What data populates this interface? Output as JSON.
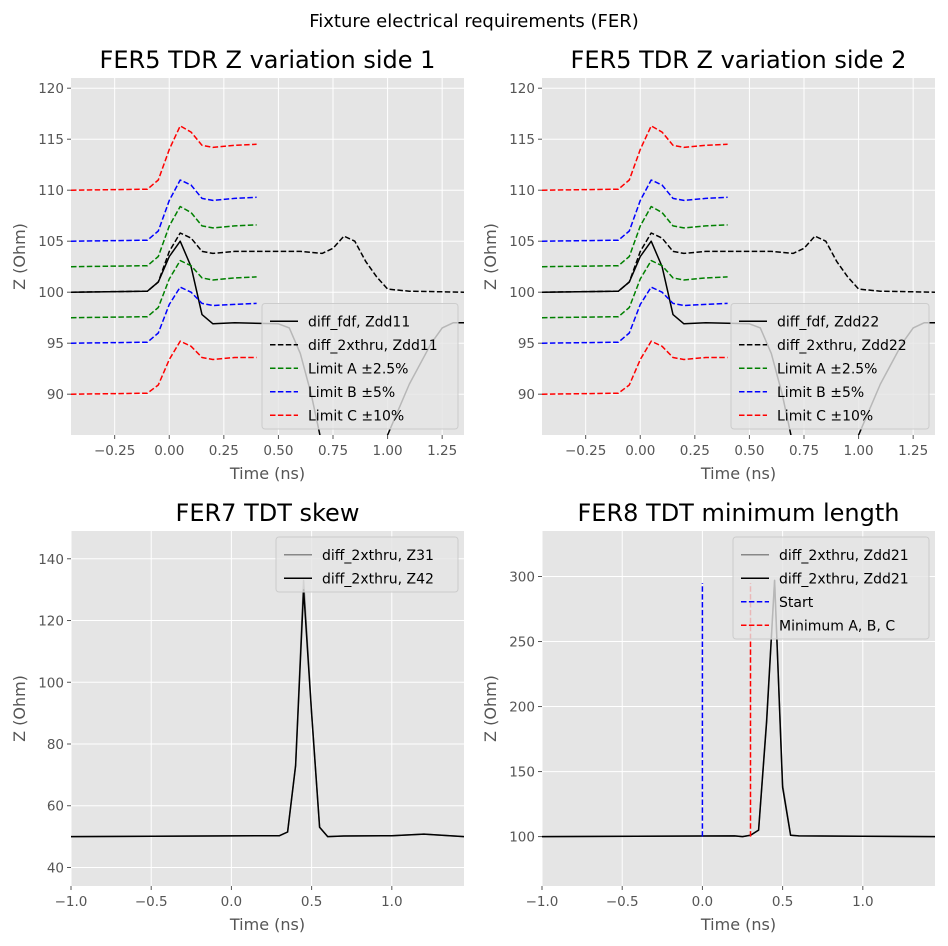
{
  "figure": {
    "suptitle": "Fixture electrical requirements (FER)"
  },
  "chart_data": [
    {
      "type": "line",
      "title": "FER5 TDR Z variation side 1",
      "xlabel": "Time (ns)",
      "ylabel": "Z (Ohm)",
      "xlim": [
        -0.45,
        1.35
      ],
      "ylim": [
        86,
        121
      ],
      "xticks": [
        -0.25,
        0.0,
        0.25,
        0.5,
        0.75,
        1.0,
        1.25
      ],
      "yticks": [
        90,
        95,
        100,
        105,
        110,
        115,
        120
      ],
      "xtick_labels": [
        "−0.25",
        "0.00",
        "0.25",
        "0.50",
        "0.75",
        "1.00",
        "1.25"
      ],
      "ytick_labels": [
        "90",
        "95",
        "100",
        "105",
        "110",
        "115",
        "120"
      ],
      "grid": true,
      "legend_position": "lower-right",
      "series": [
        {
          "name": "diff_fdf, Zdd11",
          "color": "#000000",
          "dash": "solid",
          "x": [
            -0.45,
            -0.1,
            -0.05,
            0.0,
            0.05,
            0.1,
            0.15,
            0.2,
            0.3,
            0.5,
            0.55,
            0.6,
            0.65,
            0.7,
            0.8,
            0.9,
            0.95,
            1.0,
            1.1,
            1.2,
            1.25,
            1.3,
            1.35
          ],
          "y": [
            100,
            100.1,
            101,
            103.5,
            105,
            102.5,
            97.8,
            96.9,
            97,
            96.9,
            96.5,
            94,
            90,
            85,
            80,
            82,
            84,
            86,
            91,
            95,
            96.5,
            97,
            97
          ]
        },
        {
          "name": "diff_2xthru, Zdd11",
          "color": "#000000",
          "dash": "dashed",
          "x": [
            -0.45,
            -0.1,
            -0.05,
            0.0,
            0.05,
            0.1,
            0.15,
            0.2,
            0.3,
            0.5,
            0.6,
            0.65,
            0.7,
            0.75,
            0.8,
            0.85,
            0.9,
            0.95,
            1.0,
            1.1,
            1.35
          ],
          "y": [
            100,
            100.1,
            101,
            104,
            105.8,
            105.3,
            104,
            103.8,
            104,
            104,
            104,
            103.9,
            103.8,
            104.3,
            105.5,
            105,
            103,
            101.5,
            100.3,
            100.1,
            100
          ]
        },
        {
          "name": "Limit A ±2.5%",
          "color": "#008000",
          "dash": "dashed",
          "x": [
            -0.45,
            -0.1,
            -0.05,
            0.0,
            0.05,
            0.1,
            0.15,
            0.2,
            0.3,
            0.4
          ],
          "y": [
            102.5,
            102.6,
            103.5,
            106.5,
            108.4,
            107.8,
            106.5,
            106.3,
            106.5,
            106.6
          ]
        },
        {
          "name": "",
          "color": "#008000",
          "dash": "dashed",
          "x": [
            -0.45,
            -0.1,
            -0.05,
            0.0,
            0.05,
            0.1,
            0.15,
            0.2,
            0.3,
            0.4
          ],
          "y": [
            97.5,
            97.6,
            98.5,
            101.3,
            103.1,
            102.6,
            101.4,
            101.2,
            101.4,
            101.5
          ]
        },
        {
          "name": "Limit B ±5%",
          "color": "#0000ff",
          "dash": "dashed",
          "x": [
            -0.45,
            -0.1,
            -0.05,
            0.0,
            0.05,
            0.1,
            0.15,
            0.2,
            0.3,
            0.4
          ],
          "y": [
            105,
            105.1,
            106,
            109,
            111,
            110.5,
            109.2,
            109,
            109.2,
            109.3
          ]
        },
        {
          "name": "",
          "color": "#0000ff",
          "dash": "dashed",
          "x": [
            -0.45,
            -0.1,
            -0.05,
            0.0,
            0.05,
            0.1,
            0.15,
            0.2,
            0.3,
            0.4
          ],
          "y": [
            95,
            95.1,
            96,
            98.8,
            100.5,
            100,
            98.9,
            98.7,
            98.8,
            98.9
          ]
        },
        {
          "name": "Limit C ±10%",
          "color": "#ff0000",
          "dash": "dashed",
          "x": [
            -0.45,
            -0.1,
            -0.05,
            0.0,
            0.05,
            0.1,
            0.15,
            0.2,
            0.3,
            0.4
          ],
          "y": [
            110,
            110.1,
            111,
            114,
            116.3,
            115.7,
            114.4,
            114.2,
            114.4,
            114.5
          ]
        },
        {
          "name": "",
          "color": "#ff0000",
          "dash": "dashed",
          "x": [
            -0.45,
            -0.1,
            -0.05,
            0.0,
            0.05,
            0.1,
            0.15,
            0.2,
            0.3,
            0.4
          ],
          "y": [
            90,
            90.1,
            90.9,
            93.4,
            95.2,
            94.7,
            93.6,
            93.4,
            93.6,
            93.6
          ]
        }
      ]
    },
    {
      "type": "line",
      "title": "FER5 TDR Z variation side 2",
      "xlabel": "Time (ns)",
      "ylabel": "Z (Ohm)",
      "xlim": [
        -0.45,
        1.35
      ],
      "ylim": [
        86,
        121
      ],
      "xticks": [
        -0.25,
        0.0,
        0.25,
        0.5,
        0.75,
        1.0,
        1.25
      ],
      "yticks": [
        90,
        95,
        100,
        105,
        110,
        115,
        120
      ],
      "xtick_labels": [
        "−0.25",
        "0.00",
        "0.25",
        "0.50",
        "0.75",
        "1.00",
        "1.25"
      ],
      "ytick_labels": [
        "90",
        "95",
        "100",
        "105",
        "110",
        "115",
        "120"
      ],
      "grid": true,
      "legend_position": "lower-right",
      "series": [
        {
          "name": "diff_fdf, Zdd22",
          "color": "#000000",
          "dash": "solid",
          "x": [
            -0.45,
            -0.1,
            -0.05,
            0.0,
            0.05,
            0.1,
            0.15,
            0.2,
            0.3,
            0.5,
            0.55,
            0.6,
            0.65,
            0.7,
            0.8,
            0.9,
            0.95,
            1.0,
            1.1,
            1.2,
            1.25,
            1.3,
            1.35
          ],
          "y": [
            100,
            100.1,
            101,
            103.5,
            105,
            102.5,
            97.8,
            96.9,
            97,
            96.9,
            96.5,
            94,
            90,
            85,
            80,
            82,
            84,
            86,
            91,
            95,
            96.5,
            97,
            97
          ]
        },
        {
          "name": "diff_2xthru, Zdd22",
          "color": "#000000",
          "dash": "dashed",
          "x": [
            -0.45,
            -0.1,
            -0.05,
            0.0,
            0.05,
            0.1,
            0.15,
            0.2,
            0.3,
            0.5,
            0.6,
            0.65,
            0.7,
            0.75,
            0.8,
            0.85,
            0.9,
            0.95,
            1.0,
            1.1,
            1.35
          ],
          "y": [
            100,
            100.1,
            101,
            104,
            105.8,
            105.3,
            104,
            103.8,
            104,
            104,
            104,
            103.9,
            103.8,
            104.3,
            105.5,
            105,
            103,
            101.5,
            100.3,
            100.1,
            100
          ]
        },
        {
          "name": "Limit A ±2.5%",
          "color": "#008000",
          "dash": "dashed",
          "x": [
            -0.45,
            -0.1,
            -0.05,
            0.0,
            0.05,
            0.1,
            0.15,
            0.2,
            0.3,
            0.4
          ],
          "y": [
            102.5,
            102.6,
            103.5,
            106.5,
            108.4,
            107.8,
            106.5,
            106.3,
            106.5,
            106.6
          ]
        },
        {
          "name": "",
          "color": "#008000",
          "dash": "dashed",
          "x": [
            -0.45,
            -0.1,
            -0.05,
            0.0,
            0.05,
            0.1,
            0.15,
            0.2,
            0.3,
            0.4
          ],
          "y": [
            97.5,
            97.6,
            98.5,
            101.3,
            103.1,
            102.6,
            101.4,
            101.2,
            101.4,
            101.5
          ]
        },
        {
          "name": "Limit B ±5%",
          "color": "#0000ff",
          "dash": "dashed",
          "x": [
            -0.45,
            -0.1,
            -0.05,
            0.0,
            0.05,
            0.1,
            0.15,
            0.2,
            0.3,
            0.4
          ],
          "y": [
            105,
            105.1,
            106,
            109,
            111,
            110.5,
            109.2,
            109,
            109.2,
            109.3
          ]
        },
        {
          "name": "",
          "color": "#0000ff",
          "dash": "dashed",
          "x": [
            -0.45,
            -0.1,
            -0.05,
            0.0,
            0.05,
            0.1,
            0.15,
            0.2,
            0.3,
            0.4
          ],
          "y": [
            95,
            95.1,
            96,
            98.8,
            100.5,
            100,
            98.9,
            98.7,
            98.8,
            98.9
          ]
        },
        {
          "name": "Limit C ±10%",
          "color": "#ff0000",
          "dash": "dashed",
          "x": [
            -0.45,
            -0.1,
            -0.05,
            0.0,
            0.05,
            0.1,
            0.15,
            0.2,
            0.3,
            0.4
          ],
          "y": [
            110,
            110.1,
            111,
            114,
            116.3,
            115.7,
            114.4,
            114.2,
            114.4,
            114.5
          ]
        },
        {
          "name": "",
          "color": "#ff0000",
          "dash": "dashed",
          "x": [
            -0.45,
            -0.1,
            -0.05,
            0.0,
            0.05,
            0.1,
            0.15,
            0.2,
            0.3,
            0.4
          ],
          "y": [
            90,
            90.1,
            90.9,
            93.4,
            95.2,
            94.7,
            93.6,
            93.4,
            93.6,
            93.6
          ]
        }
      ]
    },
    {
      "type": "line",
      "title": "FER7 TDT skew",
      "xlabel": "Time (ns)",
      "ylabel": "Z (Ohm)",
      "xlim": [
        -1.0,
        1.45
      ],
      "ylim": [
        34,
        149
      ],
      "xticks": [
        -1.0,
        -0.5,
        0.0,
        0.5,
        1.0
      ],
      "yticks": [
        40,
        60,
        80,
        100,
        120,
        140
      ],
      "xtick_labels": [
        "−1.0",
        "−0.5",
        "0.0",
        "0.5",
        "1.0"
      ],
      "ytick_labels": [
        "40",
        "60",
        "80",
        "100",
        "120",
        "140"
      ],
      "grid": true,
      "legend_position": "upper-right",
      "series": [
        {
          "name": "diff_2xthru, Z31",
          "color": "#888888",
          "dash": "solid",
          "x": [
            -1.0,
            0.3,
            0.35,
            0.4,
            0.45,
            0.5,
            0.55,
            0.6,
            0.7,
            1.0,
            1.2,
            1.45
          ],
          "y": [
            50,
            50.3,
            51.5,
            73,
            133,
            90,
            53,
            50,
            50.2,
            50.3,
            50.8,
            50
          ]
        },
        {
          "name": "diff_2xthru, Z42",
          "color": "#000000",
          "dash": "solid",
          "x": [
            -1.0,
            0.3,
            0.35,
            0.4,
            0.45,
            0.5,
            0.55,
            0.6,
            0.7,
            1.0,
            1.2,
            1.45
          ],
          "y": [
            50,
            50.3,
            51.5,
            73,
            130,
            90,
            53,
            50,
            50.2,
            50.3,
            50.8,
            50
          ]
        }
      ]
    },
    {
      "type": "line",
      "title": "FER8 TDT minimum length",
      "xlabel": "Time (ns)",
      "ylabel": "Z (Ohm)",
      "xlim": [
        -1.0,
        1.45
      ],
      "ylim": [
        62,
        335
      ],
      "xticks": [
        -1.0,
        -0.5,
        0.0,
        0.5,
        1.0
      ],
      "yticks": [
        100,
        150,
        200,
        250,
        300
      ],
      "xtick_labels": [
        "−1.0",
        "−0.5",
        "0.0",
        "0.5",
        "1.0"
      ],
      "ytick_labels": [
        "100",
        "150",
        "200",
        "250",
        "300"
      ],
      "grid": true,
      "legend_position": "upper-right",
      "series": [
        {
          "name": "diff_2xthru, Zdd21",
          "color": "#888888",
          "dash": "solid",
          "x": [
            -1.0,
            0.2,
            0.25,
            0.3,
            0.35,
            0.4,
            0.45,
            0.5,
            0.55,
            0.6,
            1.0,
            1.45
          ],
          "y": [
            100,
            100.5,
            100,
            101,
            105,
            190,
            297,
            140,
            101,
            100.5,
            100.2,
            100
          ]
        },
        {
          "name": "diff_2xthru, Zdd21",
          "color": "#000000",
          "dash": "solid",
          "x": [
            -1.0,
            0.2,
            0.25,
            0.3,
            0.35,
            0.4,
            0.45,
            0.5,
            0.55,
            0.6,
            1.0,
            1.45
          ],
          "y": [
            100,
            100.5,
            100,
            101,
            105,
            188,
            297,
            138,
            101,
            100.5,
            100.2,
            100
          ]
        },
        {
          "name": "Start",
          "color": "#0000ff",
          "dash": "dashed",
          "x": [
            0.0,
            0.0
          ],
          "y": [
            100,
            295
          ]
        },
        {
          "name": "Minimum A, B, C",
          "color": "#ff0000",
          "dash": "dashed",
          "x": [
            0.3,
            0.3
          ],
          "y": [
            100,
            295
          ]
        }
      ]
    }
  ]
}
